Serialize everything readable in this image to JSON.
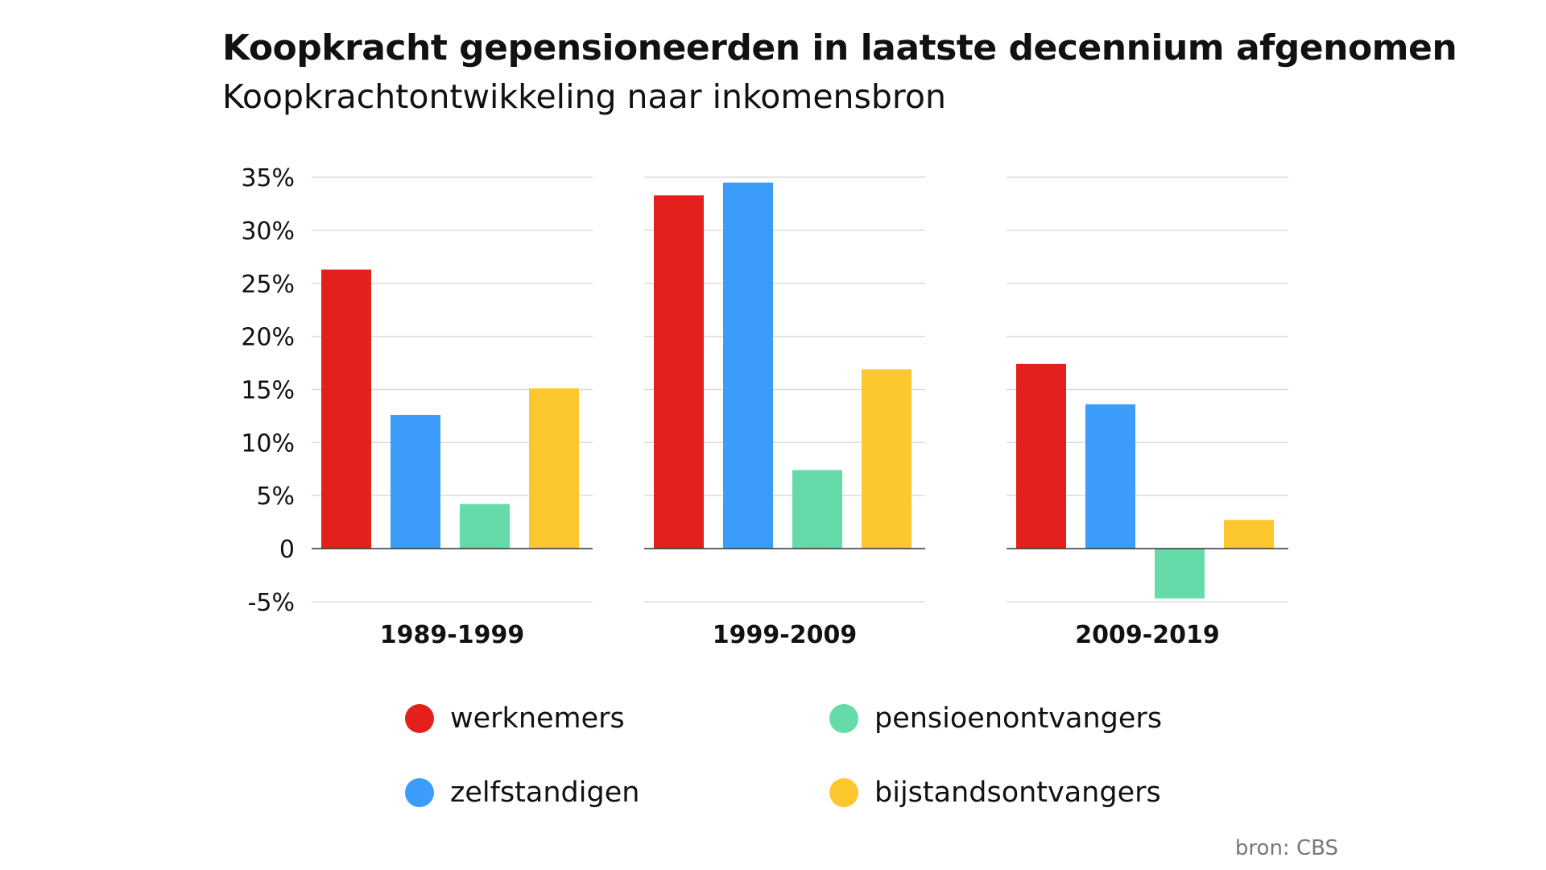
{
  "chart_data": {
    "type": "bar",
    "title": "Koopkracht gepensioneerden in laatste decennium afgenomen",
    "subtitle": "Koopkrachtontwikkeling naar inkomensbron",
    "categories": [
      "1989-1999",
      "1999-2009",
      "2009-2019"
    ],
    "series": [
      {
        "name": "werknemers",
        "color": "#e3201b",
        "values": [
          26.3,
          33.3,
          17.4
        ]
      },
      {
        "name": "zelfstandigen",
        "color": "#3b9cfa",
        "values": [
          12.6,
          34.5,
          13.6
        ]
      },
      {
        "name": "pensioenontvangers",
        "color": "#64dba9",
        "values": [
          4.2,
          7.4,
          -4.7
        ]
      },
      {
        "name": "bijstandsontvangers",
        "color": "#fdc72e",
        "values": [
          15.1,
          16.9,
          2.7
        ]
      }
    ],
    "yticks": [
      "35%",
      "30%",
      "25%",
      "20%",
      "15%",
      "10%",
      "5%",
      "0",
      "-5%"
    ],
    "ytick_values": [
      35,
      30,
      25,
      20,
      15,
      10,
      5,
      0,
      -5
    ],
    "ylim": [
      -5,
      35
    ],
    "grid": true,
    "legend_position": "bottom",
    "source": "bron: CBS"
  }
}
